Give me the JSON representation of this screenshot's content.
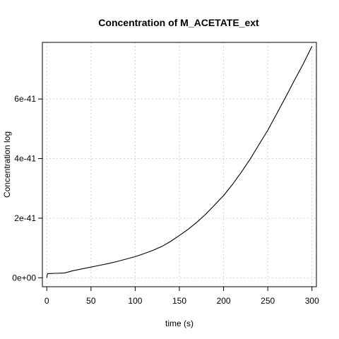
{
  "chart_data": {
    "type": "line",
    "title": "Concentration of M_ACETATE_ext",
    "xlabel": "time (s)",
    "ylabel": "Concentration log",
    "xlim": [
      -5,
      305
    ],
    "ylim": [
      -3e-42,
      7.9e-41
    ],
    "grid": true,
    "x_ticks": [
      0,
      50,
      100,
      150,
      200,
      250,
      300
    ],
    "x_tick_labels": [
      "0",
      "50",
      "100",
      "150",
      "200",
      "250",
      "300"
    ],
    "y_ticks": [
      0,
      2e-41,
      4e-41,
      6e-41
    ],
    "y_tick_labels": [
      "0e+00",
      "2e-41",
      "4e-41",
      "6e-41"
    ],
    "series": [
      {
        "x": [
          0,
          0.5,
          1,
          10,
          20,
          30,
          40,
          50,
          60,
          70,
          80,
          90,
          100,
          110,
          120,
          130,
          140,
          150,
          160,
          170,
          180,
          190,
          200,
          210,
          220,
          230,
          240,
          250,
          260,
          270,
          280,
          290,
          300
        ],
        "values": [
          0,
          1e-42,
          1.4e-42,
          1.5e-42,
          1.6e-42,
          2.4e-42,
          3e-42,
          3.6e-42,
          4.2e-42,
          4.8e-42,
          5.5e-42,
          6.3e-42,
          7.1e-42,
          8.1e-42,
          9.2e-42,
          1.05e-41,
          1.22e-41,
          1.42e-41,
          1.63e-41,
          1.87e-41,
          2.14e-41,
          2.45e-41,
          2.76e-41,
          3.13e-41,
          3.54e-41,
          3.98e-41,
          4.47e-41,
          4.95e-41,
          5.5e-41,
          6.05e-41,
          6.62e-41,
          7.17e-41,
          7.77e-41
        ],
        "color": "#000000"
      }
    ]
  }
}
